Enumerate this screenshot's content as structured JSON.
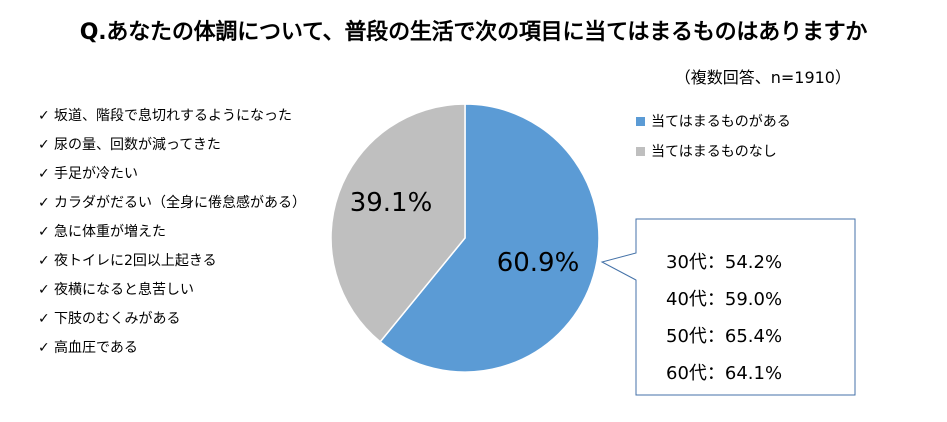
{
  "title": "Q.あなたの体調について、普段の生活で次の項目に当てはまるものはありますか",
  "subtitle": "（複数回答、n=1910）",
  "items": [
    "坂道、階段で息切れするようになった",
    "尿の量、回数が減ってきた",
    "手足が冷たい",
    "カラダがだるい（全身に倦怠感がある）",
    "急に体重が増えた",
    "夜トイレに2回以上起きる",
    "夜横になると息苦しい",
    "下肢のむくみがある",
    "高血圧である"
  ],
  "check_glyph": "✓",
  "chart_data": {
    "type": "pie",
    "title": "Q.あなたの体調について、普段の生活で次の項目に当てはまるものはありますか",
    "subtitle": "（複数回答、n=1910）",
    "slices": [
      {
        "label": "当てはまるものがある",
        "value": 60.9,
        "value_label": "60.9%",
        "color": "#5b9bd5"
      },
      {
        "label": "当てはまるものなし",
        "value": 39.1,
        "value_label": "39.1%",
        "color": "#bfbfbf"
      }
    ],
    "legend_position": "top-right",
    "callout": {
      "attached_to": "当てはまるものがある",
      "rows": [
        {
          "label": "30代",
          "sep": "：",
          "value_label": "54.2%",
          "value": 54.2
        },
        {
          "label": "40代",
          "sep": "：",
          "value_label": "59.0%",
          "value": 59.0
        },
        {
          "label": "50代",
          "sep": "：",
          "value_label": "65.4%",
          "value": 65.4
        },
        {
          "label": "60代",
          "sep": "：",
          "value_label": "64.1%",
          "value": 64.1
        }
      ]
    }
  }
}
